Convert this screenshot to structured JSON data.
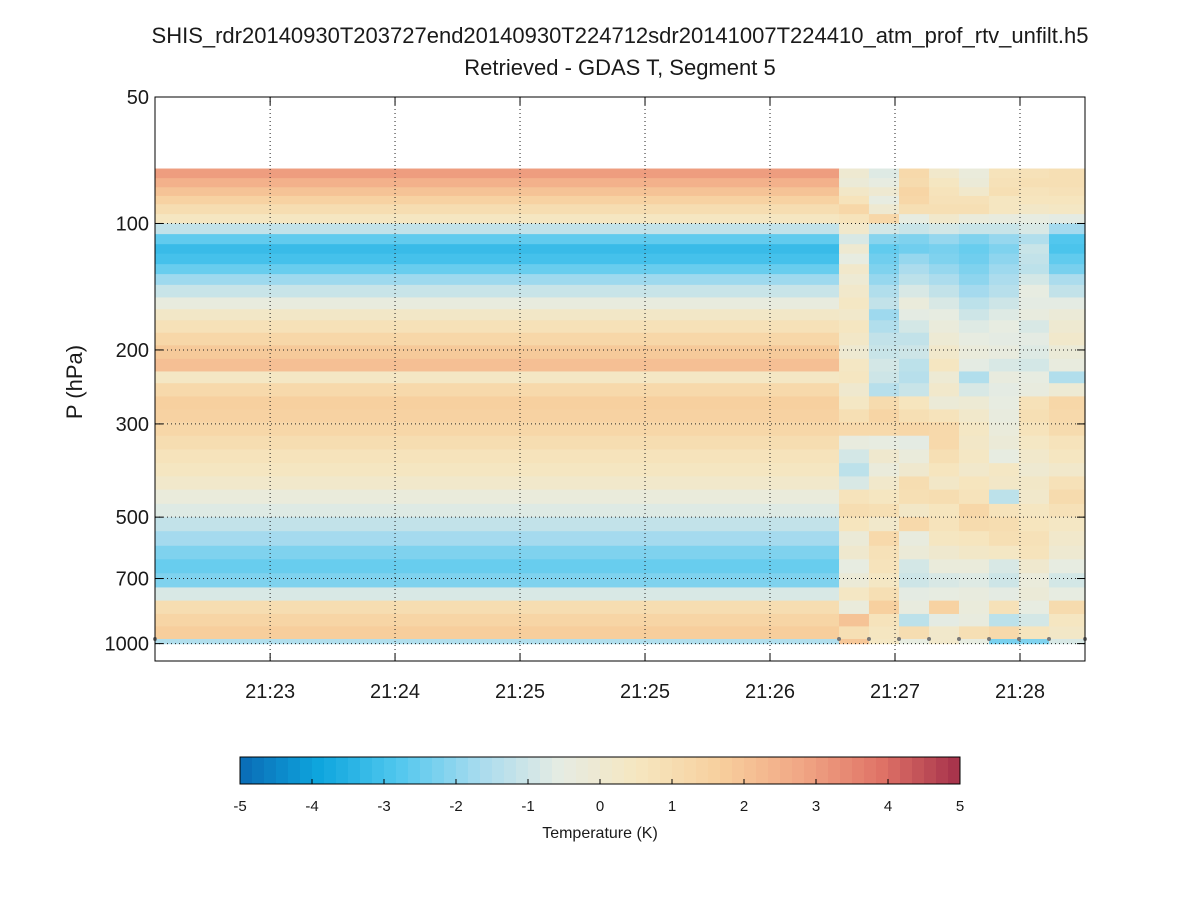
{
  "chart_data": {
    "type": "heatmap",
    "title": "SHIS_rdr20140930T203727end20140930T224712sdr20141007T224410_atm_prof_rtv_unfilt.h5",
    "subtitle": "Retrieved - GDAS T, Segment 5",
    "ylabel": "P (hPa)",
    "y_scale": "log",
    "y_reversed": true,
    "ylim": [
      50,
      1100
    ],
    "y_ticks": [
      {
        "value": 50,
        "label": "50"
      },
      {
        "value": 100,
        "label": "100"
      },
      {
        "value": 200,
        "label": "200"
      },
      {
        "value": 300,
        "label": "300"
      },
      {
        "value": 500,
        "label": "500"
      },
      {
        "value": 700,
        "label": "700"
      },
      {
        "value": 1000,
        "label": "1000"
      }
    ],
    "xlim": [
      0,
      1
    ],
    "x_ticks": [
      {
        "value": 0.1238,
        "label": "21:23"
      },
      {
        "value": 0.2581,
        "label": "21:24"
      },
      {
        "value": 0.3925,
        "label": "21:25"
      },
      {
        "value": 0.5269,
        "label": "21:25"
      },
      {
        "value": 0.6613,
        "label": "21:26"
      },
      {
        "value": 0.7957,
        "label": "21:27"
      },
      {
        "value": 0.9301,
        "label": "21:28"
      }
    ],
    "grid": true,
    "columns_x": [
      0,
      0.7355,
      0.7677,
      0.8,
      0.8323,
      0.8645,
      0.8968,
      0.929,
      0.9613,
      1.0
    ],
    "rows_p": [
      74,
      78,
      82,
      86,
      90,
      95,
      100,
      106,
      112,
      118,
      125,
      132,
      140,
      150,
      160,
      170,
      182,
      195,
      210,
      225,
      240,
      258,
      277,
      297,
      320,
      345,
      372,
      400,
      430,
      465,
      500,
      540,
      585,
      630,
      680,
      735,
      790,
      850,
      910,
      975,
      1000
    ],
    "values": [
      [
        3.0,
        0.0,
        -0.7,
        1.2,
        0.2,
        -0.3,
        0.7,
        0.8,
        0.9
      ],
      [
        2.5,
        -0.2,
        -0.5,
        1.1,
        0.5,
        -0.2,
        0.8,
        0.9,
        0.9
      ],
      [
        2.0,
        0.3,
        0.0,
        1.4,
        0.7,
        0.2,
        0.9,
        0.7,
        0.8
      ],
      [
        1.5,
        0.7,
        -0.5,
        1.3,
        0.8,
        0.8,
        0.5,
        0.6,
        0.6
      ],
      [
        1.0,
        1.3,
        0.0,
        0.9,
        0.9,
        0.9,
        0.5,
        0.3,
        0.4
      ],
      [
        0.5,
        0.7,
        1.3,
        -0.5,
        0.2,
        -0.3,
        -0.4,
        -0.5,
        -0.6
      ],
      [
        -1.2,
        0.2,
        -0.9,
        -1.1,
        -0.9,
        -1.1,
        -1.1,
        -0.8,
        -1.7
      ],
      [
        -2.6,
        -0.8,
        -2.1,
        -2.2,
        -1.9,
        -2.2,
        -1.9,
        -1.5,
        -2.8
      ],
      [
        -3.2,
        0.0,
        -2.6,
        -2.4,
        -2.3,
        -2.5,
        -2.2,
        -1.1,
        -2.9
      ],
      [
        -3.0,
        -0.5,
        -2.4,
        -1.9,
        -2.2,
        -2.4,
        -2.0,
        -1.2,
        -2.6
      ],
      [
        -2.5,
        0.2,
        -2.2,
        -1.6,
        -1.9,
        -2.2,
        -1.8,
        -1.3,
        -2.3
      ],
      [
        -1.8,
        -0.1,
        -1.9,
        -1.3,
        -1.6,
        -2.0,
        -1.6,
        -0.9,
        -1.6
      ],
      [
        -1.1,
        0.2,
        -1.5,
        -0.8,
        -1.2,
        -1.7,
        -1.4,
        -0.5,
        -1.2
      ],
      [
        -0.4,
        0.4,
        -1.2,
        -0.3,
        -0.8,
        -1.3,
        -1.0,
        -0.6,
        -0.6
      ],
      [
        0.3,
        0.2,
        -1.8,
        -0.6,
        -0.5,
        -1.0,
        -0.7,
        -0.4,
        -0.2
      ],
      [
        0.8,
        0.5,
        -1.5,
        -0.9,
        -0.3,
        -0.7,
        -0.5,
        -0.8,
        0.0
      ],
      [
        1.3,
        0.3,
        -1.2,
        -1.2,
        -0.1,
        -0.5,
        -0.6,
        -0.6,
        0.2
      ],
      [
        1.8,
        0.0,
        -1.1,
        -1.0,
        0.2,
        -0.3,
        -0.4,
        -0.7,
        -0.2
      ],
      [
        2.1,
        0.4,
        -0.9,
        -1.3,
        0.5,
        -0.6,
        -0.8,
        -0.9,
        -0.4
      ],
      [
        0.4,
        0.5,
        -1.0,
        -1.4,
        -0.1,
        -1.5,
        -0.4,
        -0.5,
        -1.5
      ],
      [
        1.2,
        0.1,
        -1.4,
        -1.1,
        0.2,
        -0.8,
        -0.6,
        -0.4,
        -0.1
      ],
      [
        1.6,
        0.4,
        1.1,
        0.6,
        -0.2,
        -0.1,
        -0.5,
        0.8,
        1.3
      ],
      [
        1.5,
        0.9,
        1.4,
        0.9,
        0.7,
        0.2,
        -0.4,
        0.9,
        1.2
      ],
      [
        1.3,
        1.2,
        1.2,
        1.3,
        1.2,
        0.4,
        -0.3,
        0.7,
        1.1
      ],
      [
        1.0,
        -0.4,
        -0.5,
        -0.6,
        1.2,
        0.3,
        -0.2,
        0.4,
        0.7
      ],
      [
        0.7,
        -0.9,
        0.1,
        -0.3,
        0.9,
        0.4,
        -0.5,
        0.2,
        0.5
      ],
      [
        0.5,
        -1.3,
        -0.3,
        0.1,
        0.6,
        0.2,
        0.4,
        0.0,
        0.2
      ],
      [
        0.2,
        -0.8,
        0.2,
        1.0,
        0.3,
        0.6,
        0.3,
        0.3,
        0.8
      ],
      [
        -0.3,
        0.7,
        0.5,
        0.9,
        1.0,
        0.7,
        -1.3,
        0.2,
        1.1
      ],
      [
        -0.7,
        1.0,
        0.9,
        0.3,
        0.6,
        1.3,
        0.7,
        0.5,
        0.8
      ],
      [
        -1.2,
        0.6,
        0.2,
        1.2,
        0.7,
        1.1,
        1.0,
        0.6,
        0.4
      ],
      [
        -1.7,
        -0.2,
        1.2,
        -0.4,
        0.5,
        0.6,
        0.9,
        0.8,
        0.2
      ],
      [
        -2.2,
        0.1,
        0.8,
        -0.2,
        0.1,
        0.3,
        0.4,
        0.7,
        0.0
      ],
      [
        -2.5,
        -0.5,
        0.7,
        -0.9,
        -0.3,
        -0.3,
        -0.8,
        0.1,
        -0.5
      ],
      [
        -2.2,
        -0.2,
        0.4,
        -1.0,
        -0.8,
        -0.7,
        -1.0,
        -0.3,
        -0.9
      ],
      [
        -0.8,
        0.4,
        0.9,
        -0.6,
        -0.5,
        -0.4,
        -0.6,
        -0.2,
        -0.5
      ],
      [
        1.0,
        -0.3,
        1.6,
        -0.4,
        1.5,
        -0.3,
        0.8,
        -0.5,
        1.1
      ],
      [
        1.4,
        2.0,
        0.7,
        -1.3,
        -0.6,
        -0.4,
        -1.3,
        -0.9,
        0.5
      ],
      [
        1.7,
        0.9,
        0.5,
        1.0,
        0.2,
        0.9,
        1.2,
        0.6,
        0.3
      ],
      [
        -1.5,
        1.9,
        0.4,
        -0.5,
        0.2,
        -0.5,
        -2.3,
        -2.2,
        -0.8
      ]
    ],
    "ground_markers_x": [
      0.7355,
      0.7677,
      0.8,
      0.8323,
      0.8645,
      0.8968,
      0.929,
      0.9613,
      1.0
    ],
    "ground_marker_p": 975,
    "colorbar": {
      "label": "Temperature (K)",
      "range": [
        -5,
        5
      ],
      "ticks": [
        "-5",
        "-4",
        "-3",
        "-2",
        "-1",
        "0",
        "1",
        "2",
        "3",
        "4",
        "5"
      ],
      "colormap": [
        "#0a6bb5",
        "#0ea6de",
        "#53c8ee",
        "#a8dbee",
        "#e6ece3",
        "#f6e6bf",
        "#f7cf9d",
        "#f1a785",
        "#e07467",
        "#a5304a"
      ]
    }
  }
}
